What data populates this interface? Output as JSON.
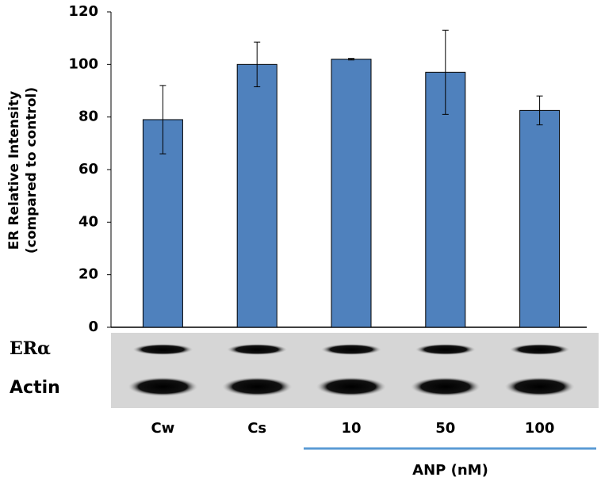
{
  "chart_data": {
    "type": "bar",
    "ylabel": [
      "ER Relative Intensity",
      "(compared to control)"
    ],
    "categories": [
      "Cw",
      "Cs",
      "10",
      "50",
      "100"
    ],
    "values": [
      79,
      100,
      102,
      97,
      82.5
    ],
    "errors": [
      13,
      8.5,
      0.3,
      16,
      5.5
    ],
    "color": "#4f81bd",
    "ylim": [
      0,
      120
    ],
    "yticks": [
      0,
      20,
      40,
      60,
      80,
      100,
      120
    ],
    "blot_labels": [
      "ERα",
      "Actin"
    ],
    "group_label": "ANP (nM)"
  }
}
